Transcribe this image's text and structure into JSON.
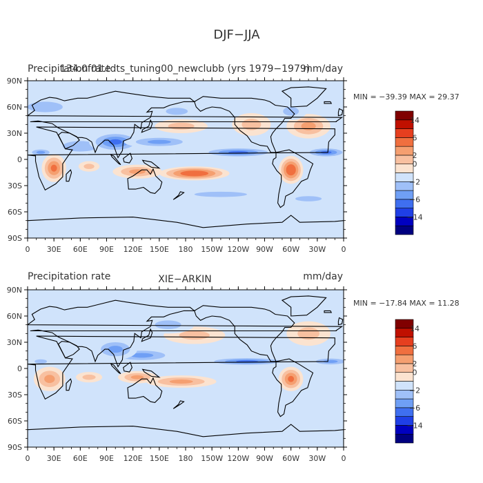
{
  "figure": {
    "title": "DJF−JJA"
  },
  "chart_data": [
    {
      "type": "heatmap",
      "subtype": "filled contour map (global lat-lon)",
      "left_title": "Precipitation rate",
      "center_title": "134.0f01.tdts_tuning00_newclubb (yrs 1979−1979)",
      "units": "mm/day",
      "stats": "MIN = −39.39  MAX =  29.37",
      "x_ticks": [
        "0",
        "30E",
        "60E",
        "90E",
        "120E",
        "150E",
        "180",
        "150W",
        "120W",
        "90W",
        "60W",
        "30W",
        "0"
      ],
      "y_ticks": [
        "90N",
        "60N",
        "30N",
        "0",
        "30S",
        "60S",
        "90S"
      ],
      "xlim": [
        0,
        360
      ],
      "ylim": [
        -90,
        90
      ],
      "colorbar_labels": [
        "14",
        "6",
        "2",
        "0",
        "−2",
        "−6",
        "−14"
      ],
      "min": -39.39,
      "max": 29.37,
      "features": [
        {
          "lon": 255,
          "lat": 40,
          "rx": 22,
          "ry": 13,
          "v": 4
        },
        {
          "lon": 320,
          "lat": 38,
          "rx": 25,
          "ry": 14,
          "v": 6
        },
        {
          "lon": 175,
          "lat": 38,
          "rx": 30,
          "ry": 8,
          "v": 3
        },
        {
          "lon": 30,
          "lat": -10,
          "rx": 14,
          "ry": 16,
          "v": 8
        },
        {
          "lon": 300,
          "lat": -12,
          "rx": 14,
          "ry": 16,
          "v": 10
        },
        {
          "lon": 190,
          "lat": -16,
          "rx": 40,
          "ry": 8,
          "v": 10
        },
        {
          "lon": 125,
          "lat": -14,
          "rx": 28,
          "ry": 8,
          "v": 6
        },
        {
          "lon": 70,
          "lat": -8,
          "rx": 12,
          "ry": 6,
          "v": 3
        },
        {
          "lon": 60,
          "lat": 15,
          "rx": 40,
          "ry": 12,
          "v": -4
        },
        {
          "lon": 100,
          "lat": 20,
          "rx": 30,
          "ry": 12,
          "v": -8
        },
        {
          "lon": 150,
          "lat": 20,
          "rx": 40,
          "ry": 7,
          "v": -6
        },
        {
          "lon": 240,
          "lat": 8,
          "rx": 45,
          "ry": 6,
          "v": -8
        },
        {
          "lon": 340,
          "lat": 8,
          "rx": 25,
          "ry": 6,
          "v": -8
        },
        {
          "lon": 15,
          "lat": 8,
          "rx": 15,
          "ry": 5,
          "v": -6
        },
        {
          "lon": 300,
          "lat": 55,
          "rx": 18,
          "ry": 10,
          "v": -3
        },
        {
          "lon": 20,
          "lat": 60,
          "rx": 40,
          "ry": 12,
          "v": -3
        },
        {
          "lon": 170,
          "lat": 55,
          "rx": 25,
          "ry": 8,
          "v": -4
        },
        {
          "lon": 220,
          "lat": -40,
          "rx": 60,
          "ry": 6,
          "v": -3
        },
        {
          "lon": 320,
          "lat": -45,
          "rx": 30,
          "ry": 6,
          "v": -3
        }
      ]
    },
    {
      "type": "heatmap",
      "subtype": "filled contour map (global lat-lon)",
      "left_title": "Precipitation rate",
      "center_title": "XIE−ARKIN",
      "units": "mm/day",
      "stats": "MIN = −17.84  MAX =  11.28",
      "x_ticks": [
        "0",
        "30E",
        "60E",
        "90E",
        "120E",
        "150E",
        "180",
        "150W",
        "120W",
        "90W",
        "60W",
        "30W",
        "0"
      ],
      "y_ticks": [
        "90N",
        "60N",
        "30N",
        "0",
        "30S",
        "60S",
        "90S"
      ],
      "xlim": [
        0,
        360
      ],
      "ylim": [
        -90,
        90
      ],
      "colorbar_labels": [
        "14",
        "6",
        "2",
        "0",
        "−2",
        "−6",
        "−14"
      ],
      "min": -17.84,
      "max": 11.28,
      "features": [
        {
          "lon": 190,
          "lat": 38,
          "rx": 35,
          "ry": 10,
          "v": 3
        },
        {
          "lon": 320,
          "lat": 40,
          "rx": 25,
          "ry": 14,
          "v": 4
        },
        {
          "lon": 25,
          "lat": -12,
          "rx": 18,
          "ry": 14,
          "v": 6
        },
        {
          "lon": 300,
          "lat": -12,
          "rx": 14,
          "ry": 14,
          "v": 8
        },
        {
          "lon": 175,
          "lat": -15,
          "rx": 40,
          "ry": 7,
          "v": 6
        },
        {
          "lon": 125,
          "lat": -10,
          "rx": 22,
          "ry": 7,
          "v": 5
        },
        {
          "lon": 70,
          "lat": -10,
          "rx": 15,
          "ry": 6,
          "v": 3
        },
        {
          "lon": 130,
          "lat": 15,
          "rx": 40,
          "ry": 8,
          "v": -5
        },
        {
          "lon": 100,
          "lat": 22,
          "rx": 25,
          "ry": 12,
          "v": -6
        },
        {
          "lon": 250,
          "lat": 8,
          "rx": 50,
          "ry": 5,
          "v": -7
        },
        {
          "lon": 345,
          "lat": 8,
          "rx": 25,
          "ry": 5,
          "v": -6
        },
        {
          "lon": 15,
          "lat": 8,
          "rx": 14,
          "ry": 5,
          "v": -4
        },
        {
          "lon": 160,
          "lat": 50,
          "rx": 30,
          "ry": 10,
          "v": -3
        },
        {
          "lon": 30,
          "lat": 62,
          "rx": 40,
          "ry": 10,
          "v": -2
        },
        {
          "lon": 280,
          "lat": 55,
          "rx": 20,
          "ry": 10,
          "v": -2
        }
      ]
    }
  ],
  "colors": {
    "levels": [
      "#000080",
      "#0000c0",
      "#1f3fe6",
      "#3f6ff0",
      "#6f9ff5",
      "#9fc0f8",
      "#d0e3fb",
      "#fbe3d0",
      "#f8c0a0",
      "#f59f70",
      "#f06f3f",
      "#e63f1f",
      "#c01000",
      "#800000"
    ],
    "land_outline": "#000000",
    "frame": "#000000"
  }
}
